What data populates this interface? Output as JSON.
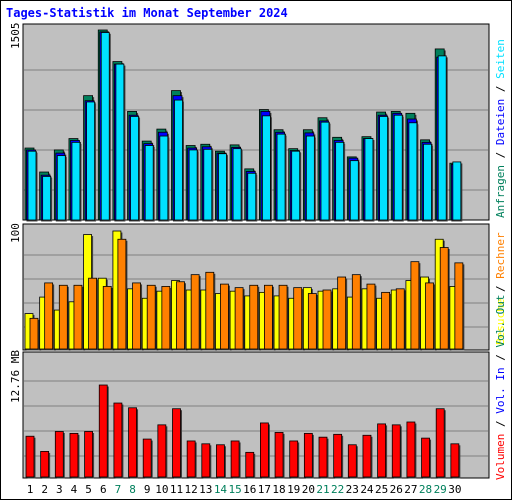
{
  "title": "Tages-Statistik im Monat September 2024",
  "colors": {
    "anfragen": "#00805c",
    "dateien": "#0000ff",
    "seiten": "#00e0ff",
    "besuche": "#ffff00",
    "rechner": "#ff8000",
    "volumen": "#ff0000",
    "panel_bg": "#c0c0c0",
    "day_weekday": "#000000",
    "day_weekend": "#00805c"
  },
  "side_labels": {
    "top": [
      {
        "text": "Anfragen",
        "color": "#00805c"
      },
      {
        "text": " / ",
        "color": "#000000"
      },
      {
        "text": "Dateien",
        "color": "#0000ff"
      },
      {
        "text": " / ",
        "color": "#000000"
      },
      {
        "text": "Seiten",
        "color": "#00e0ff"
      }
    ],
    "middle": [
      {
        "text": "Besuche",
        "color": "#ffff00"
      },
      {
        "text": " / ",
        "color": "#000000"
      },
      {
        "text": "Rechner",
        "color": "#ff8000"
      }
    ],
    "bottom": [
      {
        "text": "Volumen",
        "color": "#ff0000"
      },
      {
        "text": " / ",
        "color": "#000000"
      },
      {
        "text": "Vol. In",
        "color": "#0000ff"
      },
      {
        "text": " / ",
        "color": "#000000"
      },
      {
        "text": "Vol. Out",
        "color": "#00805c"
      }
    ]
  },
  "chart_data": [
    {
      "type": "bar",
      "panel": "hits",
      "ymax_label": "1505",
      "ylim": [
        0,
        1505
      ],
      "categories": [
        "1",
        "2",
        "3",
        "4",
        "5",
        "6",
        "7",
        "8",
        "9",
        "10",
        "11",
        "12",
        "13",
        "14",
        "15",
        "16",
        "17",
        "18",
        "19",
        "20",
        "21",
        "22",
        "23",
        "24",
        "25",
        "26",
        "27",
        "28",
        "29",
        "30"
      ],
      "weekend": [
        false,
        false,
        false,
        false,
        false,
        false,
        true,
        true,
        false,
        false,
        false,
        false,
        false,
        true,
        true,
        false,
        false,
        false,
        false,
        false,
        true,
        true,
        false,
        false,
        false,
        false,
        false,
        true,
        true,
        false
      ],
      "series": [
        {
          "name": "Anfragen",
          "values": [
            570,
            380,
            555,
            645,
            985,
            1505,
            1255,
            860,
            625,
            720,
            1025,
            590,
            600,
            545,
            595,
            405,
            875,
            715,
            565,
            715,
            810,
            655,
            500,
            660,
            855,
            860,
            845,
            635,
            1355,
            450
          ]
        },
        {
          "name": "Dateien",
          "values": [
            555,
            355,
            530,
            630,
            945,
            1490,
            1235,
            830,
            605,
            695,
            985,
            570,
            580,
            530,
            575,
            385,
            860,
            695,
            550,
            690,
            785,
            630,
            490,
            645,
            830,
            845,
            800,
            615,
            1290,
            440
          ]
        },
        {
          "name": "Seiten",
          "values": [
            545,
            345,
            510,
            615,
            935,
            1485,
            1235,
            820,
            590,
            665,
            950,
            555,
            560,
            525,
            565,
            370,
            825,
            680,
            545,
            665,
            775,
            615,
            470,
            645,
            820,
            830,
            770,
            600,
            1300,
            460
          ]
        }
      ]
    },
    {
      "type": "bar",
      "panel": "visits",
      "ymax_label": "100",
      "ylim": [
        0,
        100
      ],
      "series": [
        {
          "name": "Besuche",
          "values": [
            30,
            44,
            33,
            40,
            97,
            60,
            100,
            51,
            43,
            49,
            58,
            50,
            50,
            47,
            49,
            45,
            48,
            45,
            43,
            52,
            49,
            51,
            44,
            51,
            43,
            50,
            58,
            61,
            93,
            53
          ]
        },
        {
          "name": "Rechner",
          "values": [
            26,
            56,
            54,
            54,
            60,
            53,
            93,
            56,
            54,
            53,
            57,
            63,
            65,
            55,
            52,
            54,
            54,
            54,
            52,
            47,
            50,
            61,
            63,
            55,
            48,
            51,
            74,
            56,
            86,
            73
          ]
        }
      ]
    },
    {
      "type": "bar",
      "panel": "volume",
      "ymax_label": "12.76 MB",
      "ylim": [
        0,
        12.76
      ],
      "series": [
        {
          "name": "Volumen",
          "values": [
            4.3,
            2.7,
            4.8,
            4.6,
            4.8,
            9.7,
            7.8,
            7.3,
            4.0,
            5.5,
            7.2,
            3.8,
            3.5,
            3.4,
            3.8,
            2.6,
            5.7,
            4.7,
            3.8,
            4.6,
            4.2,
            4.5,
            3.4,
            4.4,
            5.6,
            5.5,
            5.8,
            4.1,
            7.2,
            3.5
          ]
        }
      ]
    }
  ]
}
